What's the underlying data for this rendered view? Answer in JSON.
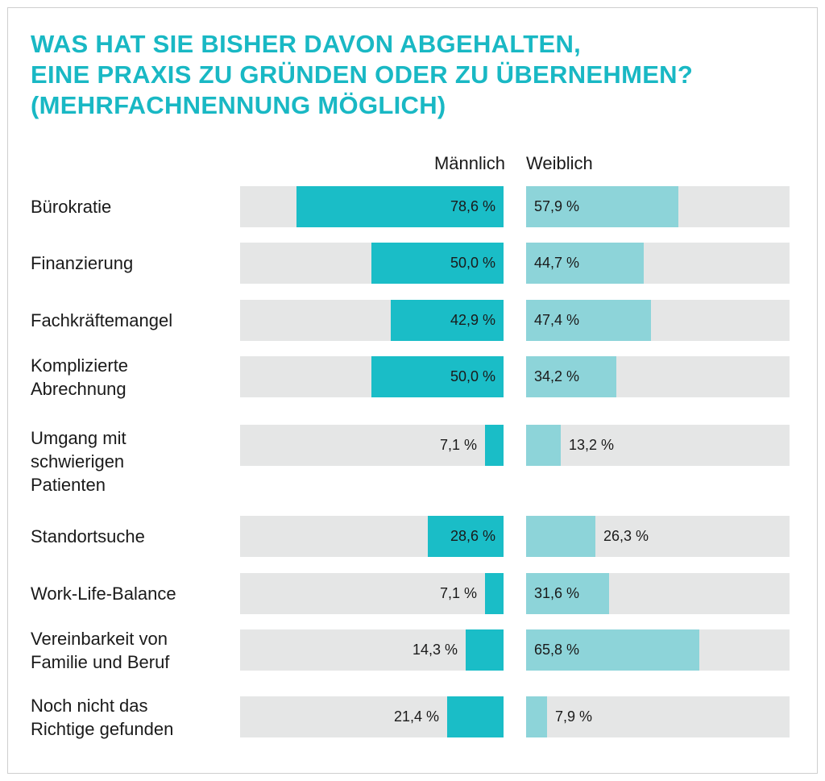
{
  "title_lines": [
    "WAS HAT SIE BISHER DAVON ABGEHALTEN,",
    "EINE PRAXIS ZU GRÜNDEN ODER ZU ÜBERNEHMEN?",
    "(MEHRFACHNENNUNG MÖGLICH)"
  ],
  "chart_data": {
    "type": "bar",
    "orientation": "horizontal",
    "title": "WAS HAT SIE BISHER DAVON ABGEHALTEN, EINE PRAXIS ZU GRÜNDEN ODER ZU ÜBERNEHMEN? (MEHRFACHNENNUNG MÖGLICH)",
    "xlim": [
      0,
      100
    ],
    "grid": false,
    "colors": {
      "maennlich": "#1abdc7",
      "weiblich": "#8dd4d9",
      "track": "#e5e6e6",
      "title": "#19b8c4"
    },
    "categories": [
      [
        "Bürokratie"
      ],
      [
        "Finanzierung"
      ],
      [
        "Fachkräftemangel"
      ],
      [
        "Komplizierte",
        "Abrechnung"
      ],
      [
        "Umgang mit",
        "schwierigen",
        "Patienten"
      ],
      [
        "Standortsuche"
      ],
      [
        "Work-Life-Balance"
      ],
      [
        "Vereinbarkeit von",
        "Familie und Beruf"
      ],
      [
        "Noch nicht das",
        "Richtige gefunden"
      ]
    ],
    "series": [
      {
        "name": "Männlich",
        "values": [
          78.6,
          50.0,
          42.9,
          50.0,
          7.1,
          28.6,
          7.1,
          14.3,
          21.4
        ],
        "labels": [
          "78,6 %",
          "50,0 %",
          "42,9 %",
          "50,0 %",
          "7,1 %",
          "28,6 %",
          "7,1 %",
          "14,3 %",
          "21,4 %"
        ]
      },
      {
        "name": "Weiblich",
        "values": [
          57.9,
          44.7,
          47.4,
          34.2,
          13.2,
          26.3,
          31.6,
          65.8,
          7.9
        ],
        "labels": [
          "57,9 %",
          "44,7 %",
          "47,4 %",
          "34,2 %",
          "13,2 %",
          "26,3 %",
          "31,6 %",
          "65,8 %",
          "7,9 %"
        ]
      }
    ]
  }
}
